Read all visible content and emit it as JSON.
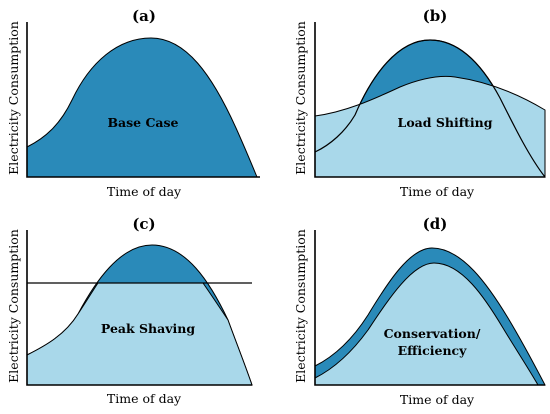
{
  "panels": {
    "a": {
      "label": "(a)",
      "xlabel": "Time of day",
      "ylabel": "Electricity Consumption",
      "area_label": "Base Case"
    },
    "b": {
      "label": "(b)",
      "xlabel": "Time of day",
      "ylabel": "Electricity Consumption",
      "area_label": "Load Shifting"
    },
    "c": {
      "label": "(c)",
      "xlabel": "Time of day",
      "ylabel": "Electricity Consumption",
      "area_label": "Peak Shaving"
    },
    "d": {
      "label": "(d)",
      "xlabel": "Time of day",
      "ylabel": "Electricity Consumption",
      "area_label_line1": "Conservation/",
      "area_label_line2": "Efficiency"
    }
  },
  "colors": {
    "dark_fill": "#2a8ab9",
    "light_fill": "#a9d8ea"
  }
}
